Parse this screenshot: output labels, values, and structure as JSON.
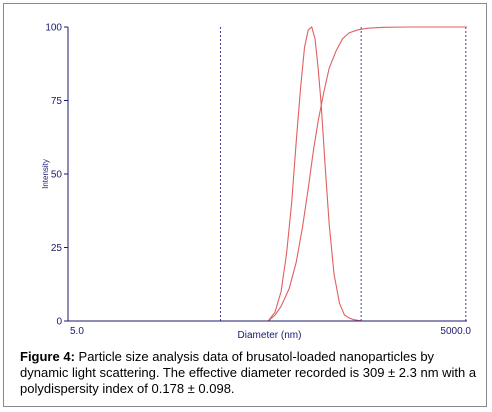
{
  "chart_data": {
    "type": "line",
    "title": "",
    "xlabel": "Diameter (nm)",
    "ylabel": "Intensity",
    "x_scale": "log",
    "xlim": [
      5.0,
      5000.0
    ],
    "ylim": [
      0,
      100
    ],
    "x_tick_labels": [
      "5.0",
      "5000.0"
    ],
    "y_ticks": [
      0,
      25,
      50,
      75,
      100
    ],
    "y_tick_labels": [
      "0",
      "25",
      "50",
      "75",
      "100"
    ],
    "grid": false,
    "legend": "none",
    "series": [
      {
        "kind": "distribution",
        "color": "#e06060",
        "x": [
          160,
          180,
          200,
          220,
          240,
          260,
          280,
          300,
          320,
          340,
          360,
          380,
          400,
          430,
          460,
          500,
          550,
          600,
          650,
          700,
          760,
          820
        ],
        "y": [
          0,
          3,
          10,
          23,
          40,
          61,
          79,
          93,
          99,
          100,
          96,
          86,
          74,
          52,
          33,
          16,
          6,
          2,
          1,
          0.5,
          0.2,
          0
        ]
      },
      {
        "kind": "cumulative",
        "color": "#e06060",
        "x": [
          160,
          180,
          200,
          230,
          260,
          290,
          320,
          350,
          380,
          420,
          460,
          520,
          580,
          650,
          750,
          900,
          1200,
          1800,
          2500,
          3500,
          5000
        ],
        "y": [
          0,
          2,
          5,
          11,
          20,
          32,
          45,
          58,
          68,
          78,
          86,
          92,
          96,
          98,
          99,
          99.6,
          99.9,
          100,
          100,
          100,
          100
        ]
      }
    ],
    "reference_lines_x": [
      70,
      800,
      4900
    ],
    "colors": {
      "axis": "#1a1a6e",
      "curve": "#e06060",
      "reference": "#2a2a8a"
    }
  },
  "caption": {
    "label": "Figure 4:",
    "text": " Particle size analysis data of brusatol-loaded nanoparticles by dynamic light scattering. The effective diameter recorded is 309 ± 2.3 nm with a polydispersity index of 0.178 ± 0.098."
  }
}
